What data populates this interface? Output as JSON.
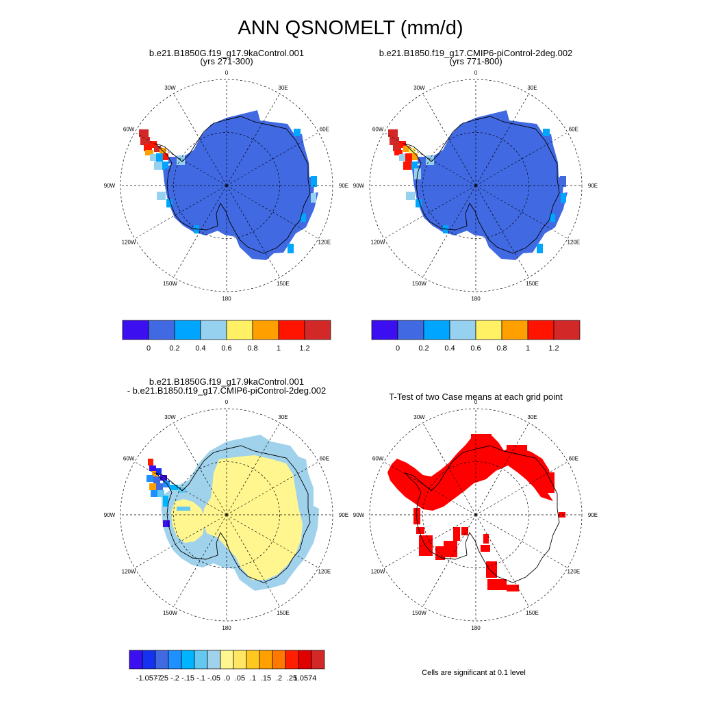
{
  "main_title": "ANN QSNOMELT (mm/d)",
  "colors": {
    "land_fill": "#4169e1",
    "diff_fill": "#fff68f",
    "sig_fill": "#ff0000",
    "coast": "#000000"
  },
  "chart_data": [
    {
      "type": "heatmap",
      "projection": "south-polar-stereographic",
      "title_lines": [
        "b.e21.B1850G.f19_g17.9kaControl.001",
        "(yrs 271-300)"
      ],
      "lon_labels": [
        "0",
        "30E",
        "60E",
        "90E",
        "120E",
        "150E",
        "180",
        "150W",
        "120W",
        "90W",
        "60W",
        "30W"
      ],
      "colorbar": {
        "colors": [
          "#3b0ff0",
          "#4169e1",
          "#00a5ff",
          "#96d2f0",
          "#fff064",
          "#ffa000",
          "#ff1400",
          "#d22828"
        ],
        "tick_labels": [
          "0",
          "0.2",
          "0.4",
          "0.6",
          "0.8",
          "1",
          "1.2"
        ]
      }
    },
    {
      "type": "heatmap",
      "projection": "south-polar-stereographic",
      "title_lines": [
        "b.e21.B1850.f19_g17.CMIP6-piControl-2deg.002",
        "(yrs 771-800)"
      ],
      "lon_labels": [
        "0",
        "30E",
        "60E",
        "90E",
        "120E",
        "150E",
        "180",
        "150W",
        "120W",
        "90W",
        "60W",
        "30W"
      ],
      "colorbar": {
        "colors": [
          "#3b0ff0",
          "#4169e1",
          "#00a5ff",
          "#96d2f0",
          "#fff064",
          "#ffa000",
          "#ff1400",
          "#d22828"
        ],
        "tick_labels": [
          "0",
          "0.2",
          "0.4",
          "0.6",
          "0.8",
          "1",
          "1.2"
        ]
      }
    },
    {
      "type": "heatmap",
      "projection": "south-polar-stereographic",
      "title_lines": [
        "b.e21.B1850G.f19_g17.9kaControl.001",
        "- b.e21.B1850.f19_g17.CMIP6-piControl-2deg.002"
      ],
      "lon_labels": [
        "0",
        "30E",
        "60E",
        "90E",
        "120E",
        "150E",
        "180",
        "150W",
        "120W",
        "90W",
        "60W",
        "30W"
      ],
      "colorbar": {
        "colors": [
          "#3b0ff0",
          "#1432f0",
          "#4169e1",
          "#1e90ff",
          "#00b4ff",
          "#64c8f0",
          "#a0d2eb",
          "#fff68f",
          "#ffe664",
          "#ffc81e",
          "#ffa000",
          "#ff7800",
          "#ff1e00",
          "#e10000",
          "#d22828"
        ],
        "tick_labels": [
          "-1.0577",
          "-.25",
          "-.2",
          "-.15",
          "-.1",
          "-.05",
          ".0",
          ".05",
          ".1",
          ".15",
          ".2",
          ".25",
          "1.0574"
        ]
      }
    },
    {
      "type": "heatmap",
      "projection": "south-polar-stereographic",
      "title_lines": [
        "T-Test of two Case means at each grid point"
      ],
      "lon_labels": [
        "0",
        "30E",
        "60E",
        "90E",
        "120E",
        "150E",
        "180",
        "150W",
        "120W",
        "90W",
        "60W",
        "30W"
      ],
      "significance_level": 0.1,
      "note": "Cells are significant at 0.1 level"
    }
  ]
}
